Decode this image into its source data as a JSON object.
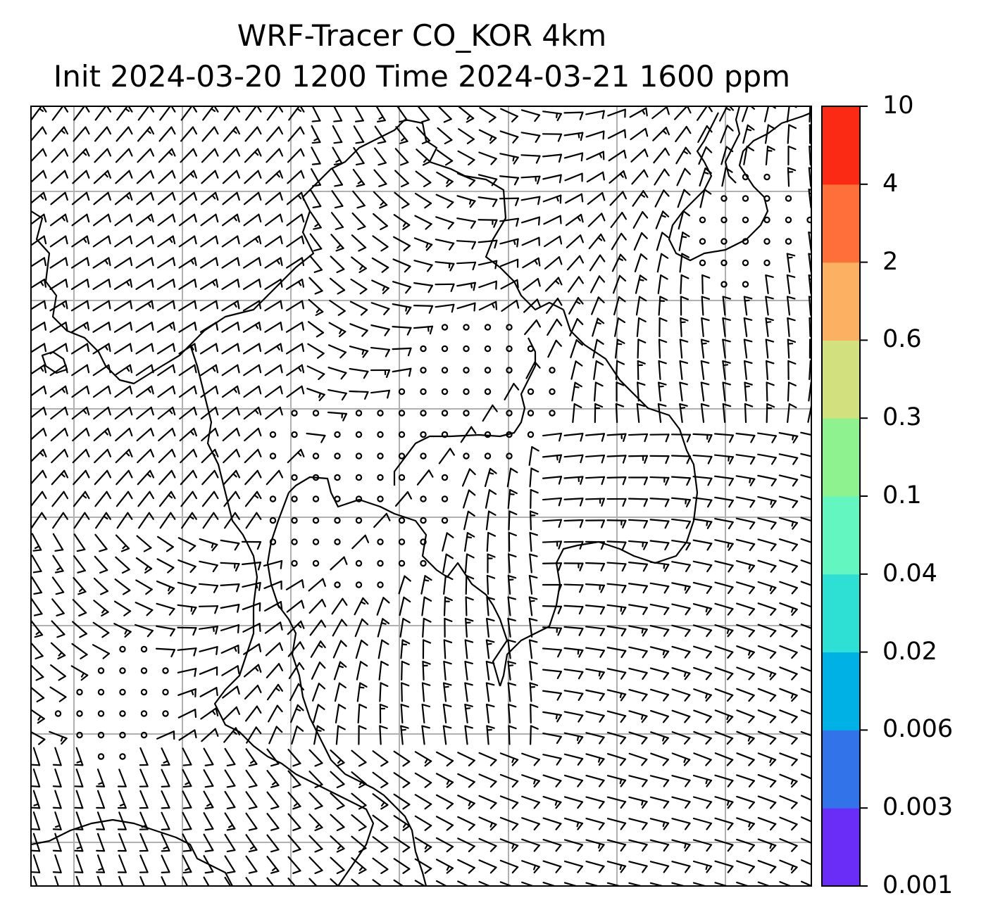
{
  "title": {
    "line1": "WRF-Tracer CO_KOR 4km",
    "line2": "Init 2024-03-20 1200 Time 2024-03-21 1600 ppm"
  },
  "colorbar": {
    "levels": [
      "0.001",
      "0.003",
      "0.006",
      "0.02",
      "0.04",
      "0.1",
      "0.3",
      "0.6",
      "2",
      "4",
      "10"
    ],
    "colors": [
      "#6a2cf7",
      "#3273ea",
      "#00b1e6",
      "#2ee0d3",
      "#63f6c0",
      "#8ef38e",
      "#d3e07e",
      "#fcb062",
      "#ff6f39",
      "#fb2a14"
    ]
  },
  "map": {
    "field": "CO_KOR",
    "unit": "ppm",
    "background_color": "#ffffff",
    "gridline_color": "#b0b0b0",
    "coastline_color": "#000000",
    "wind_barbs": true
  }
}
